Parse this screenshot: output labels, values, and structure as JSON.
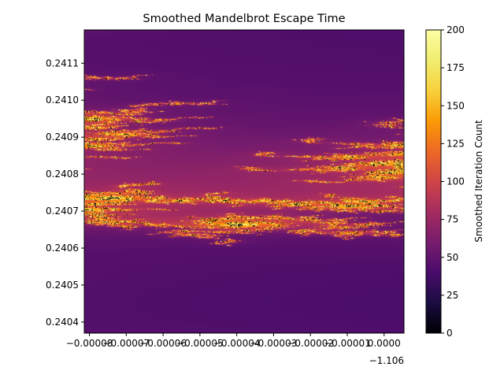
{
  "chart_data": {
    "type": "heatmap",
    "title": "Smoothed Mandelbrot Escape Time",
    "xlabel": "",
    "ylabel": "",
    "x_offset_label": "−1.106",
    "x_ticks": [
      {
        "value": -8e-05,
        "label": "−0.00008"
      },
      {
        "value": -7e-05,
        "label": "−0.00007"
      },
      {
        "value": -6e-05,
        "label": "−0.00006"
      },
      {
        "value": -5e-05,
        "label": "−0.00005"
      },
      {
        "value": -4e-05,
        "label": "−0.00004"
      },
      {
        "value": -3e-05,
        "label": "−0.00003"
      },
      {
        "value": -2e-05,
        "label": "−0.00002"
      },
      {
        "value": -1e-05,
        "label": "−0.00001"
      },
      {
        "value": 0.0,
        "label": "0.0000"
      }
    ],
    "xlim": [
      -8.14e-05,
      5.4e-06
    ],
    "y_ticks": [
      {
        "value": 0.2404,
        "label": "0.2404"
      },
      {
        "value": 0.2405,
        "label": "0.2405"
      },
      {
        "value": 0.2406,
        "label": "0.2406"
      },
      {
        "value": 0.2407,
        "label": "0.2407"
      },
      {
        "value": 0.2408,
        "label": "0.2408"
      },
      {
        "value": 0.2409,
        "label": "0.2409"
      },
      {
        "value": 0.241,
        "label": "0.2410"
      },
      {
        "value": 0.2411,
        "label": "0.2411"
      }
    ],
    "ylim": [
      0.24037,
      0.24119
    ],
    "colormap": "inferno",
    "colorbar": {
      "label": "Smoothed Iteration Count",
      "range": [
        0,
        200
      ],
      "ticks": [
        {
          "value": 0,
          "label": "0"
        },
        {
          "value": 25,
          "label": "25"
        },
        {
          "value": 50,
          "label": "50"
        },
        {
          "value": 75,
          "label": "75"
        },
        {
          "value": 100,
          "label": "100"
        },
        {
          "value": 125,
          "label": "125"
        },
        {
          "value": 150,
          "label": "150"
        },
        {
          "value": 175,
          "label": "175"
        },
        {
          "value": 200,
          "label": "200"
        }
      ]
    },
    "grid": false
  }
}
